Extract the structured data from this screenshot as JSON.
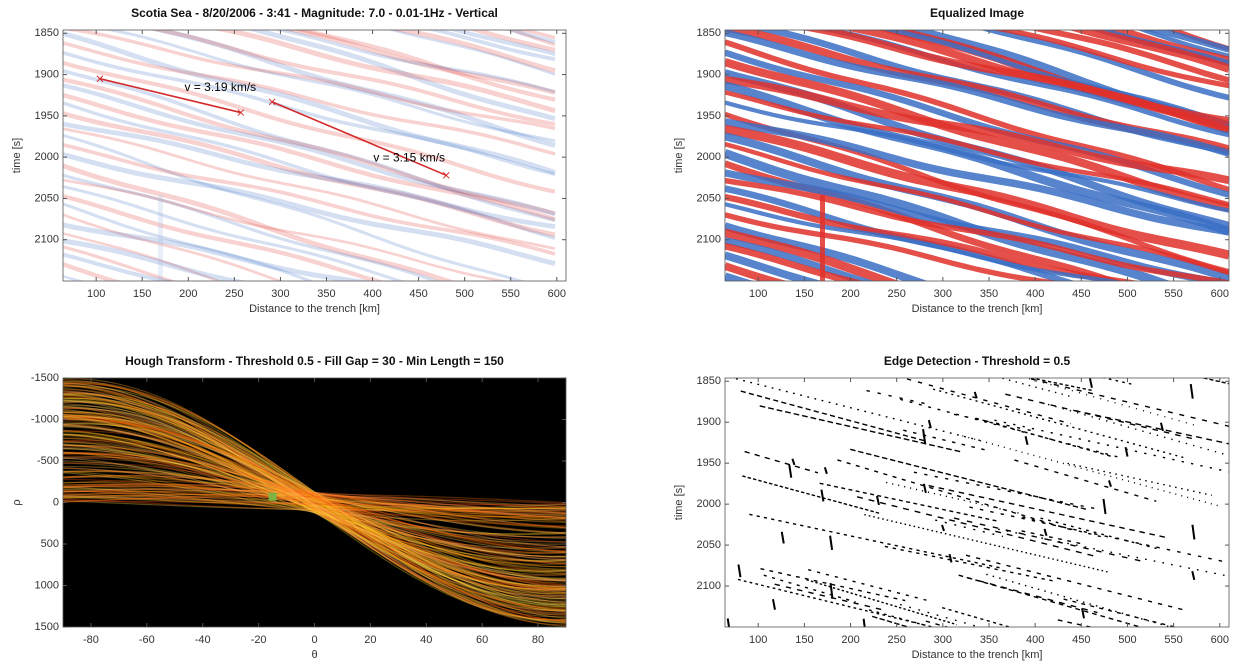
{
  "chart_data": [
    {
      "type": "image",
      "title": "Scotia Sea - 8/20/2006 - 3:41 - Magnitude: 7.0 - 0.01-1Hz - Vertical",
      "xlabel": "Distance to the trench [km]",
      "ylabel": "time [s]",
      "xlim": [
        64,
        610
      ],
      "ylim": [
        1846,
        2150
      ],
      "xticks": [
        100,
        150,
        200,
        250,
        300,
        350,
        400,
        450,
        500,
        550,
        600
      ],
      "yticks": [
        1850,
        1900,
        1950,
        2000,
        2050,
        2100
      ],
      "annotations": [
        {
          "label": "v = 3.19 km/s",
          "x": [
            104,
            257
          ],
          "y": [
            1905,
            1946
          ],
          "color": "#d42a2a"
        },
        {
          "label": "v = 3.15 km/s",
          "x": [
            291,
            480
          ],
          "y": [
            1933,
            2022
          ],
          "color": "#d42a2a"
        }
      ]
    },
    {
      "type": "image",
      "title": "Equalized Image",
      "xlabel": "Distance to the trench [km]",
      "ylabel": "time [s]",
      "xlim": [
        64,
        610
      ],
      "ylim": [
        1846,
        2150
      ],
      "xticks": [
        100,
        150,
        200,
        250,
        300,
        350,
        400,
        450,
        500,
        550,
        600
      ],
      "yticks": [
        1850,
        1900,
        1950,
        2000,
        2050,
        2100
      ]
    },
    {
      "type": "image",
      "title": "Hough Transform - Threshold 0.5 - Fill Gap = 30 - Min Length = 150",
      "xlabel": "θ",
      "ylabel": "ρ",
      "xlim": [
        -90,
        90
      ],
      "ylim": [
        -1500,
        1500
      ],
      "xticks": [
        -80,
        -60,
        -40,
        -20,
        0,
        20,
        40,
        60,
        80
      ],
      "yticks": [
        -1500,
        -1000,
        -500,
        0,
        500,
        1000,
        1500
      ]
    },
    {
      "type": "image",
      "title": "Edge Detection - Threshold = 0.5",
      "xlabel": "Distance to the trench [km]",
      "ylabel": "time [s]",
      "xlim": [
        64,
        610
      ],
      "ylim": [
        1846,
        2150
      ],
      "xticks": [
        100,
        150,
        200,
        250,
        300,
        350,
        400,
        450,
        500,
        550,
        600
      ],
      "yticks": [
        1850,
        1900,
        1950,
        2000,
        2050,
        2100
      ]
    }
  ]
}
